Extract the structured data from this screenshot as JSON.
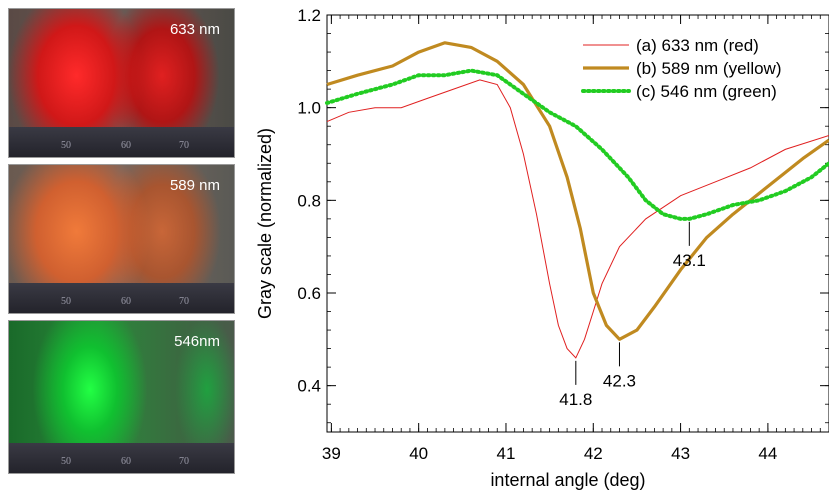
{
  "photos": [
    {
      "label": "633 nm",
      "color": "#e02020",
      "ruler": [
        "50",
        "60",
        "70"
      ]
    },
    {
      "label": "589 nm",
      "color": "#e06a2a",
      "ruler": [
        "50",
        "60",
        "70"
      ]
    },
    {
      "label": "546nm",
      "color": "#10d040",
      "ruler": [
        "50",
        "60",
        "70"
      ]
    }
  ],
  "chart_data": {
    "type": "line",
    "xlabel": "internal angle (deg)",
    "ylabel": "Gray scale (normalized)",
    "xlim": [
      38.95,
      44.7
    ],
    "ylim": [
      0.3,
      1.2
    ],
    "xticks": [
      39,
      40,
      41,
      42,
      43,
      44
    ],
    "xtick_labels": [
      "39",
      "40",
      "41",
      "42",
      "43",
      "44"
    ],
    "yticks": [
      0.4,
      0.6,
      0.8,
      1.0,
      1.2
    ],
    "ytick_labels": [
      "0.4",
      "0.6",
      "0.8",
      "1.0",
      "1.2"
    ],
    "legend": "top-right",
    "series": [
      {
        "name": "(a) 633 nm (red)",
        "color": "#e02020",
        "style": "thin",
        "x": [
          38.95,
          39.2,
          39.5,
          39.8,
          40.1,
          40.4,
          40.7,
          40.9,
          41.05,
          41.2,
          41.35,
          41.5,
          41.6,
          41.7,
          41.8,
          41.9,
          42.0,
          42.1,
          42.3,
          42.6,
          43.0,
          43.4,
          43.8,
          44.2,
          44.7
        ],
        "y": [
          0.97,
          0.99,
          1.0,
          1.0,
          1.02,
          1.04,
          1.06,
          1.05,
          1.0,
          0.9,
          0.77,
          0.62,
          0.53,
          0.48,
          0.46,
          0.5,
          0.56,
          0.62,
          0.7,
          0.76,
          0.81,
          0.84,
          0.87,
          0.91,
          0.94
        ]
      },
      {
        "name": "(b) 589 nm (yellow)",
        "color": "#c08a20",
        "style": "thick",
        "x": [
          38.95,
          39.3,
          39.7,
          40.0,
          40.3,
          40.6,
          40.9,
          41.2,
          41.5,
          41.7,
          41.85,
          42.0,
          42.15,
          42.3,
          42.5,
          42.7,
          43.0,
          43.3,
          43.6,
          44.0,
          44.4,
          44.7
        ],
        "y": [
          1.05,
          1.07,
          1.09,
          1.12,
          1.14,
          1.13,
          1.1,
          1.05,
          0.96,
          0.85,
          0.74,
          0.6,
          0.53,
          0.5,
          0.52,
          0.57,
          0.65,
          0.72,
          0.77,
          0.83,
          0.89,
          0.93
        ]
      },
      {
        "name": "(c) 546 nm (green)",
        "color": "#22cc22",
        "style": "dotted",
        "x": [
          38.95,
          39.3,
          39.7,
          40.0,
          40.3,
          40.6,
          40.9,
          41.2,
          41.5,
          41.8,
          42.1,
          42.4,
          42.6,
          42.8,
          43.0,
          43.1,
          43.3,
          43.6,
          43.9,
          44.2,
          44.5,
          44.7
        ],
        "y": [
          1.01,
          1.03,
          1.05,
          1.07,
          1.07,
          1.08,
          1.07,
          1.03,
          0.99,
          0.96,
          0.91,
          0.85,
          0.8,
          0.77,
          0.76,
          0.76,
          0.77,
          0.79,
          0.8,
          0.82,
          0.85,
          0.88
        ]
      }
    ],
    "annotations": [
      {
        "label": "41.8",
        "x": 41.8,
        "y": 0.46
      },
      {
        "label": "42.3",
        "x": 42.3,
        "y": 0.5
      },
      {
        "label": "43.1",
        "x": 43.1,
        "y": 0.76
      }
    ]
  }
}
